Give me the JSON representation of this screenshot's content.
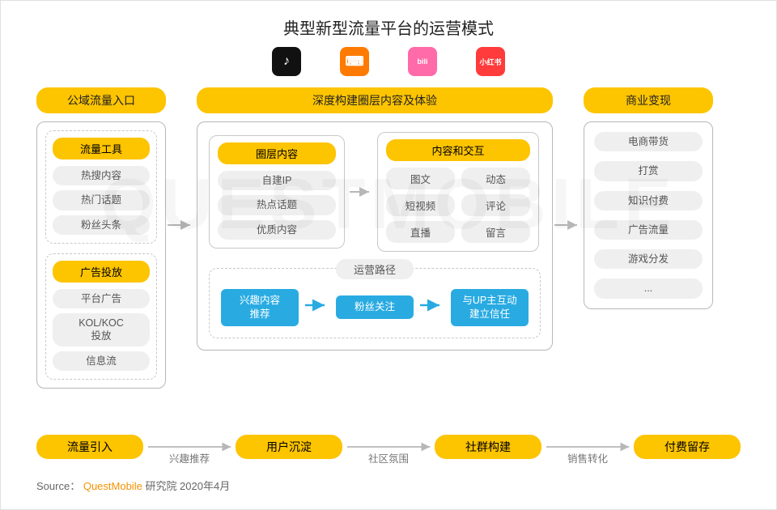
{
  "title": "典型新型流量平台的运营模式",
  "colors": {
    "accent_yellow": "#fdc400",
    "accent_blue": "#29abe2",
    "tag_bg": "#efefef",
    "border_gray": "#b7b7b7",
    "text_gray": "#555555"
  },
  "apps": [
    {
      "name": "douyin",
      "bg": "#111111",
      "glyph": "♪"
    },
    {
      "name": "kuaishou",
      "bg": "#ff7a00",
      "glyph": "⌨"
    },
    {
      "name": "bilibili",
      "bg": "#ff6aa9",
      "glyph": "bili"
    },
    {
      "name": "xiaohongshu",
      "bg": "#ff3b3b",
      "glyph": "小红书"
    }
  ],
  "left": {
    "header": "公域流量入口",
    "groups": [
      {
        "title": "流量工具",
        "items": [
          "热搜内容",
          "热门话题",
          "粉丝头条"
        ]
      },
      {
        "title": "广告投放",
        "items": [
          "平台广告",
          "KOL/KOC\n投放",
          "信息流"
        ]
      }
    ]
  },
  "middle": {
    "header": "深度构建圈层内容及体验",
    "box_a": {
      "title": "圈层内容",
      "items": [
        "自建IP",
        "热点话题",
        "优质内容"
      ]
    },
    "box_b": {
      "title": "内容和交互",
      "items": [
        "图文",
        "动态",
        "短视频",
        "评论",
        "直播",
        "留言"
      ]
    },
    "path": {
      "title": "运营路径",
      "nodes": [
        "兴趣内容\n推荐",
        "粉丝关注",
        "与UP主互动\n建立信任"
      ]
    }
  },
  "right": {
    "header": "商业变现",
    "items": [
      "电商带货",
      "打赏",
      "知识付费",
      "广告流量",
      "游戏分发",
      "..."
    ]
  },
  "bottom_flow": {
    "nodes": [
      "流量引入",
      "用户沉淀",
      "社群构建",
      "付费留存"
    ],
    "labels": [
      "兴趣推荐",
      "社区氛围",
      "销售转化"
    ]
  },
  "source": {
    "prefix": "Source：",
    "brand": "QuestMobile",
    "suffix": "研究院 2020年4月"
  },
  "watermark": "QUESTMOBILE"
}
